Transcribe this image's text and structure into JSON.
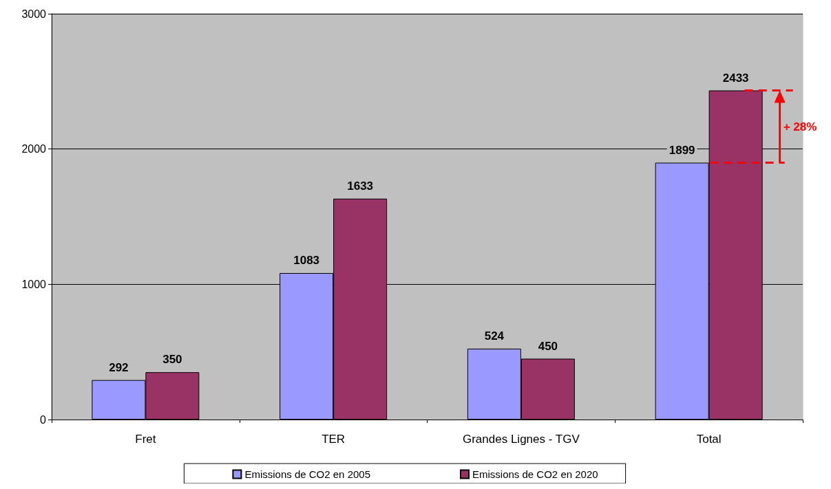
{
  "chart_data": {
    "type": "bar",
    "categories": [
      "Fret",
      "TER",
      "Grandes Lignes - TGV",
      "Total"
    ],
    "series": [
      {
        "name": "Emissions de CO2 en 2005",
        "color": "#9999ff",
        "values": [
          292,
          1083,
          524,
          1899
        ]
      },
      {
        "name": "Emissions de CO2 en 2020",
        "color": "#993366",
        "values": [
          350,
          1633,
          450,
          2433
        ]
      }
    ],
    "ylim": [
      0,
      3000
    ],
    "yticks": [
      0,
      1000,
      2000,
      3000
    ],
    "grid": "y",
    "legend": "bottom",
    "data_labels": true,
    "annotations": [
      "+ 28%"
    ]
  }
}
